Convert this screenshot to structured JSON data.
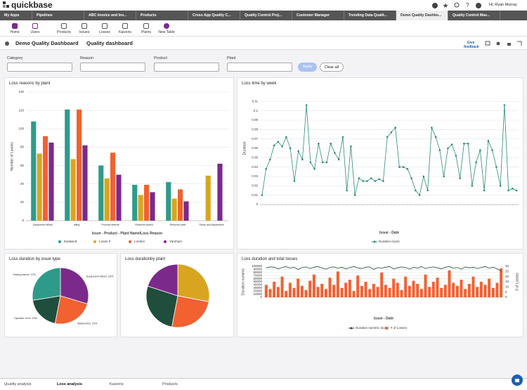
{
  "header": {
    "logo": "quickbase",
    "user": "Hi, Ryan Murray"
  },
  "app_tabs": [
    "My Apps",
    "Pipelines",
    "ABC Invoice and Inv...",
    "Products",
    "Cross App Quality C...",
    "Quality Control Proj...",
    "Customer Manager",
    "Trending Data Qualit...",
    "Demo Quality Dashbo...",
    "Quality Control Mas..."
  ],
  "toolbar": [
    "Home",
    "Users",
    "Products",
    "Issues",
    "Losses",
    "Kaizens",
    "Plants",
    "New Table"
  ],
  "page": {
    "title": "Demo Quality Dashboard",
    "subtitle": "Quality dashboard",
    "feedback": "Give feedback"
  },
  "filters": {
    "fields": [
      "Category",
      "Reason",
      "Product",
      "Plant"
    ],
    "apply": "Apply",
    "clear": "Clear all"
  },
  "chart_data": [
    {
      "type": "bar",
      "title": "Loss reasons by plant",
      "x_label": "Issue - Product - Plant Name/Loss Reason",
      "y_label": "Number of Losses",
      "categories": [
        "Equipment failure",
        "Idling",
        "Process defects",
        "Reduced speed",
        "Reduced yield",
        "Setup and Adjustment"
      ],
      "series": [
        {
          "name": "Eastwind",
          "color": "#2e9b8a",
          "values": [
            108,
            121,
            60,
            39,
            42,
            null
          ]
        },
        {
          "name": "Londo ll",
          "color": "#d9a520",
          "values": [
            73,
            67,
            46,
            28,
            24,
            49
          ]
        },
        {
          "name": "London",
          "color": "#f26130",
          "values": [
            92,
            121,
            74,
            39,
            34,
            null
          ]
        },
        {
          "name": "Yarnham",
          "color": "#7b2a8c",
          "values": [
            85,
            82,
            50,
            31,
            21,
            62
          ]
        }
      ],
      "ylim": [
        0,
        140
      ],
      "yticks": [
        0,
        20,
        40,
        60,
        80,
        100,
        120,
        140
      ],
      "grid": true
    },
    {
      "type": "line",
      "title": "Loss time by week",
      "x_label": "Issue - Date",
      "y_label": "Duration",
      "categories": [
        null,
        null,
        null,
        null,
        null,
        null,
        null,
        null,
        null,
        null,
        null,
        null,
        null,
        null,
        null,
        null,
        null,
        null,
        null,
        null,
        null,
        null,
        null,
        null,
        null,
        null,
        null,
        null,
        null,
        null,
        null,
        null,
        null,
        null,
        null,
        null,
        null,
        null,
        null,
        null,
        null,
        null,
        null,
        null,
        null,
        null,
        null,
        null,
        null,
        null,
        null,
        null,
        null,
        null,
        null,
        null,
        null,
        null,
        null,
        null,
        null,
        null,
        null,
        null
      ],
      "series": [
        {
          "name": "Duration (sum)",
          "color": "#2e8b7a",
          "values": [
            0.01,
            0.038,
            0.048,
            0.063,
            0.067,
            0.062,
            0.072,
            0.06,
            0.025,
            0.057,
            0.048,
            0.106,
            0.045,
            0.038,
            0.065,
            0.045,
            0.045,
            0.065,
            0.055,
            0.048,
            0.072,
            0.015,
            0.062,
            0.01,
            0.028,
            0.025,
            0.025,
            0.028,
            0.025,
            0.027,
            0.025,
            0.072,
            0.077,
            0.082,
            0.04,
            0.04,
            0.038,
            0.028,
            0.015,
            0.01,
            0.03,
            0.015,
            0.082,
            0.072,
            0.058,
            0.03,
            0.06,
            0.064,
            0.052,
            0.028,
            0.065,
            0.065,
            0.02,
            0.045,
            0.058,
            0.015,
            0.068,
            0.058,
            0.04,
            0.02,
            0.106,
            0.015,
            0.017,
            0.015
          ]
        }
      ],
      "ylim": [
        0,
        0.12
      ],
      "yticks": [
        0,
        0.01,
        0.02,
        0.03,
        0.04,
        0.05,
        0.06,
        0.07,
        0.08,
        0.09,
        0.1,
        0.11
      ],
      "grid": true
    },
    {
      "type": "pie",
      "title": "Loss duration by issue type",
      "categories": [
        "Equipment failure",
        "Malfunction",
        "Operator error",
        "Testing failure"
      ],
      "values": [
        29,
        23,
        19,
        27
      ],
      "value_labels": [
        "29%",
        "23%",
        "19%",
        "27%"
      ],
      "colors": [
        "#7b2a8c",
        "#f26130",
        "#1f4e3d",
        "#2e9b8a"
      ]
    },
    {
      "type": "pie",
      "title": "Loss durationby plant",
      "values": [
        28,
        25,
        27,
        20
      ],
      "colors": [
        "#d9a520",
        "#f26130",
        "#1f4e3d",
        "#7b2a8c"
      ]
    },
    {
      "type": "combo",
      "title": "Loss duration and total losses",
      "x_label": "Issue - Date",
      "y_label": "Duration numeric",
      "y2_label": "# of Losses",
      "categories": [
        null,
        null,
        null,
        null,
        null,
        null,
        null,
        null,
        null,
        null,
        null,
        null,
        null,
        null,
        null,
        null,
        null,
        null,
        null,
        null,
        null,
        null,
        null,
        null,
        null,
        null,
        null,
        null,
        null,
        null,
        null,
        null,
        null,
        null,
        null,
        null,
        null,
        null,
        null,
        null,
        null,
        null,
        null,
        null,
        null,
        null,
        null,
        null,
        null,
        null,
        null,
        null,
        null,
        null,
        null,
        null,
        null,
        null,
        null,
        null
      ],
      "series": [
        {
          "name": "Duration numeric (sum)",
          "type": "line",
          "color": "#1f4e3d",
          "values": [
            95000,
            98000,
            97000,
            92000,
            96000,
            99000,
            94000,
            97000,
            90000,
            96000,
            98000,
            93000,
            97000,
            99000,
            95000,
            91000,
            96000,
            98000,
            94000,
            97000,
            92000,
            96000,
            99000,
            95000,
            93000,
            97000,
            98000,
            90000,
            96000,
            94000,
            97000,
            99000,
            92000,
            95000,
            98000,
            96000,
            91000,
            97000,
            94000,
            99000,
            93000,
            96000,
            98000,
            95000,
            92000,
            97000,
            99000,
            94000,
            96000,
            91000,
            98000,
            95000,
            97000,
            93000,
            96000,
            99000,
            94000,
            97000,
            92000,
            85000
          ]
        },
        {
          "name": "# of Losses",
          "type": "bar",
          "axis": "y2",
          "color": "#f26130",
          "values": [
            12,
            8,
            15,
            10,
            20,
            6,
            14,
            9,
            18,
            11,
            7,
            16,
            22,
            10,
            13,
            8,
            19,
            12,
            25,
            9,
            14,
            17,
            6,
            21,
            11,
            15,
            8,
            13,
            10,
            24,
            12,
            9,
            18,
            14,
            7,
            20,
            11,
            16,
            13,
            8,
            22,
            10,
            15,
            19,
            9,
            12,
            26,
            14,
            11,
            17,
            8,
            13,
            20,
            10,
            15,
            12,
            18,
            9,
            14,
            28
          ]
        }
      ],
      "ylim": [
        0,
        100000
      ],
      "yticks": [
        0,
        10000,
        20000,
        30000,
        40000,
        50000,
        60000,
        70000,
        80000,
        90000,
        100000
      ],
      "y2lim": [
        0,
        30
      ],
      "y2ticks": [
        0,
        5,
        10,
        15,
        20,
        25,
        30
      ],
      "grid": true
    }
  ],
  "bottom_tabs": [
    "Quality analysis",
    "Loss analysis",
    "Kaizens",
    "Products"
  ]
}
